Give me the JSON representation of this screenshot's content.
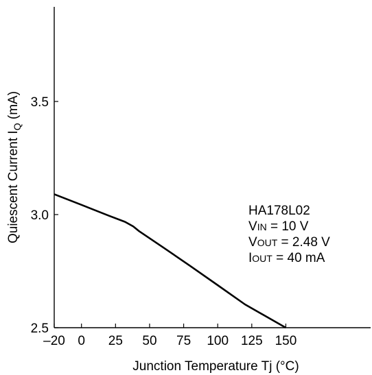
{
  "chart_data": {
    "type": "line",
    "title": "",
    "xlabel": "Junction Temperature  Tj  (°C)",
    "ylabel_main": "Quiescent Current  I",
    "ylabel_sub": "Q",
    "ylabel_unit": "  (mA)",
    "xlim": [
      -20,
      175
    ],
    "ylim": [
      2.5,
      3.9
    ],
    "x_ticks": [
      -20,
      0,
      25,
      50,
      75,
      100,
      125,
      150
    ],
    "x_tick_labels": [
      "–20",
      "0",
      "25",
      "50",
      "75",
      "100",
      "125",
      "150"
    ],
    "y_ticks": [
      2.5,
      3.0,
      3.5
    ],
    "y_tick_labels": [
      "2.5",
      "3.0",
      "3.5"
    ],
    "grid": false,
    "series": [
      {
        "x": [
          -20,
          0,
          20,
          32,
          38,
          42,
          60,
          80,
          100,
          120,
          150
        ],
        "y": [
          3.09,
          3.043,
          2.995,
          2.968,
          2.948,
          2.928,
          2.855,
          2.772,
          2.688,
          2.603,
          2.5
        ]
      }
    ],
    "annotations": [
      {
        "main": "HA178L02",
        "sub": ""
      },
      {
        "main": "V",
        "sub": "IN",
        "rest": " = 10 V"
      },
      {
        "main": "V",
        "sub": "OUT",
        "rest": " = 2.48 V"
      },
      {
        "main": "I",
        "sub": "OUT",
        "rest": " = 40 mA"
      }
    ]
  }
}
